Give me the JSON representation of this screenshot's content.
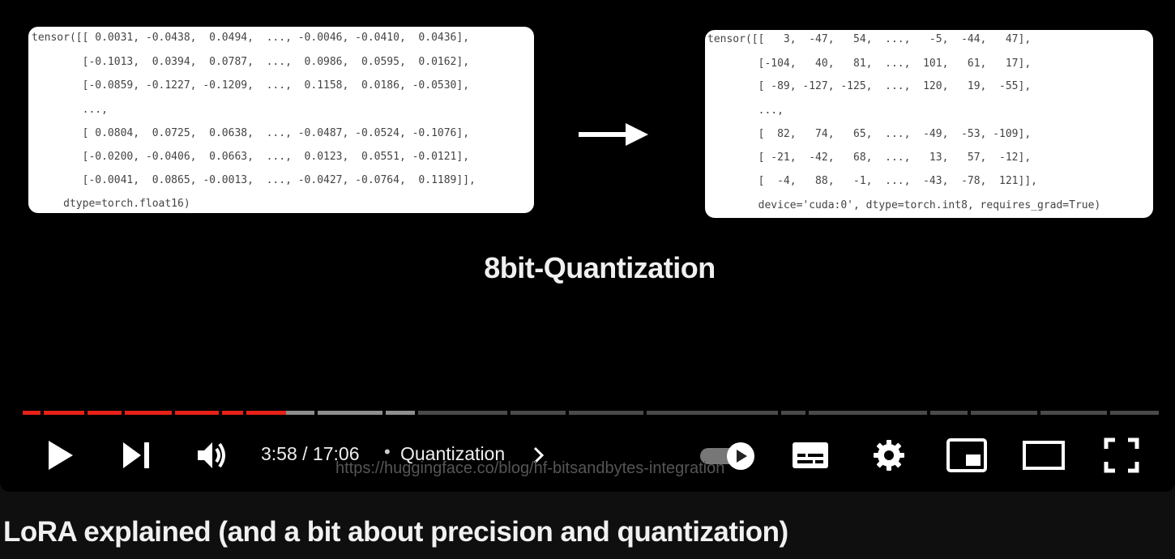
{
  "slide": {
    "left_code": [
      "tensor([[ 0.0031, -0.0438,  0.0494,  ..., -0.0046, -0.0410,  0.0436],",
      "        [-0.1013,  0.0394,  0.0787,  ...,  0.0986,  0.0595,  0.0162],",
      "        [-0.0859, -0.1227, -0.1209,  ...,  0.1158,  0.0186, -0.0530],",
      "        ...,",
      "        [ 0.0804,  0.0725,  0.0638,  ..., -0.0487, -0.0524, -0.1076],",
      "        [-0.0200, -0.0406,  0.0663,  ...,  0.0123,  0.0551, -0.0121],",
      "        [-0.0041,  0.0865, -0.0013,  ..., -0.0427, -0.0764,  0.1189]],",
      "     dtype=torch.float16)"
    ],
    "right_code": [
      "tensor([[   3,  -47,   54,  ...,   -5,  -44,   47],",
      "        [-104,   40,   81,  ...,  101,   61,   17],",
      "        [ -89, -127, -125,  ...,  120,   19,  -55],",
      "        ...,",
      "        [  82,   74,   65,  ...,  -49,  -53, -109],",
      "        [ -21,  -42,   68,  ...,   13,   57,  -12],",
      "        [  -4,   88,   -1,  ...,  -43,  -78,  121]],",
      "        device='cuda:0', dtype=torch.int8, requires_grad=True)"
    ],
    "title": "8bit-Quantization",
    "url_overlay": "https://huggingface.co/blog/hf-bitsandbytes-integration"
  },
  "player": {
    "current_time": "3:58",
    "separator": " / ",
    "duration": "17:06",
    "time_display": "3:58 / 17:06",
    "dot": "•",
    "chapter": "Quantization",
    "progress_fraction": 0.232,
    "buffered_fraction": 0.348,
    "played_color": "#e62117",
    "buffered_color": "#8e8e8e",
    "unplayed_color": "#4a4a4a",
    "autoplay_on": true,
    "icons": [
      "play-icon",
      "next-icon",
      "volume-icon",
      "autoplay-toggle-icon",
      "subtitles-icon",
      "settings-gear-icon",
      "miniplayer-icon",
      "theater-mode-icon",
      "fullscreen-icon"
    ]
  },
  "video": {
    "title": "LoRA explained (and a bit about precision and quantization)"
  }
}
